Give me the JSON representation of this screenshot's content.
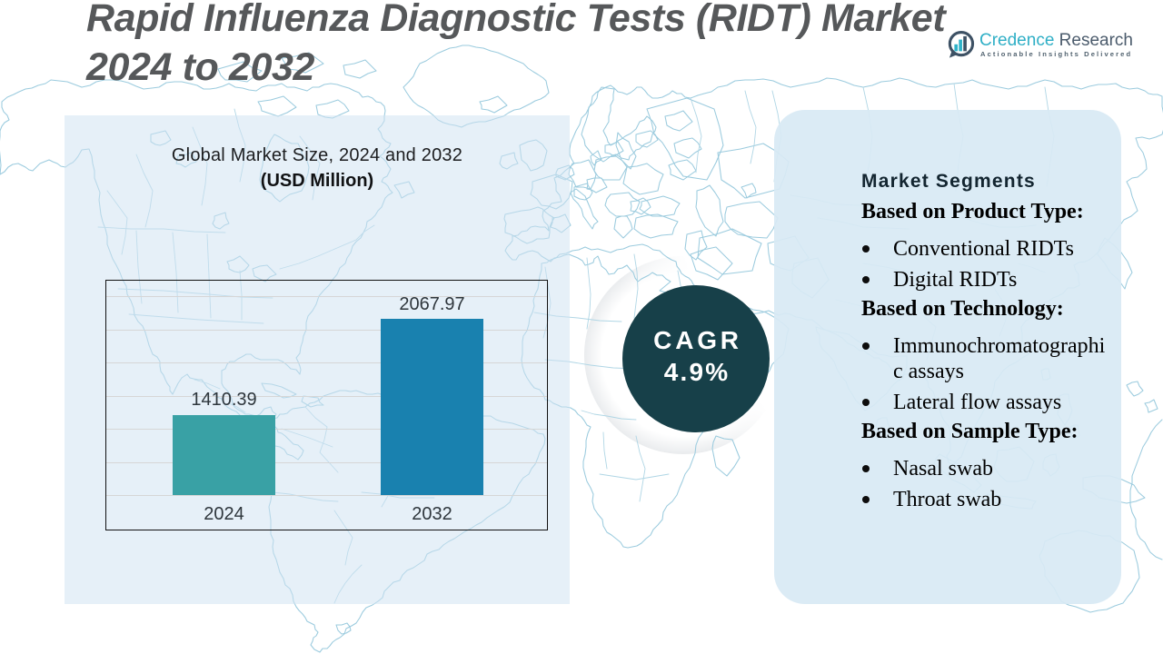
{
  "title": {
    "line1": "Rapid Influenza Diagnostic Tests (RIDT) Market",
    "line2": "2024 to 2032"
  },
  "logo": {
    "brand_primary": "Credence",
    "brand_secondary": "Research",
    "tagline": "Actionable Insights Delivered"
  },
  "chart_panel": {
    "heading_line1": "Global Market Size, 2024 and 2032",
    "heading_line2": "(USD Million)"
  },
  "chart_data": {
    "type": "bar",
    "title": "Global Market Size, 2024 and 2032 (USD Million)",
    "categories": [
      "2024",
      "2032"
    ],
    "values": [
      1410.39,
      2067.97
    ],
    "value_labels": [
      "1410.39",
      "2067.97"
    ],
    "bar_colors": [
      "#39a1a5",
      "#1981af"
    ],
    "ylim": [
      860,
      2330
    ],
    "grid": true,
    "legend": false
  },
  "cagr": {
    "label": "CAGR",
    "value": "4.9%",
    "circle_color": "#174049"
  },
  "segments": {
    "heading": "Market Segments",
    "groups": [
      {
        "label": "Based on Product Type:",
        "items": [
          "Conventional RIDTs",
          "Digital RIDTs"
        ]
      },
      {
        "label": "Based on Technology:",
        "items": [
          "Immunochromatographi\nc assays",
          "Lateral flow assays"
        ]
      },
      {
        "label": "Based on Sample Type:",
        "items": [
          "Nasal swab",
          "Throat swab"
        ]
      }
    ]
  },
  "colors": {
    "background": "#ffffff",
    "map_line": "#9bcbde",
    "panel": "#e6eff8",
    "bar_2024": "#39a1a5",
    "bar_2032": "#1981af",
    "cagr_circle": "#174049",
    "title_text": "#56585a",
    "brand_teal": "#2fafc6",
    "brand_gray": "#4b5b6c"
  }
}
